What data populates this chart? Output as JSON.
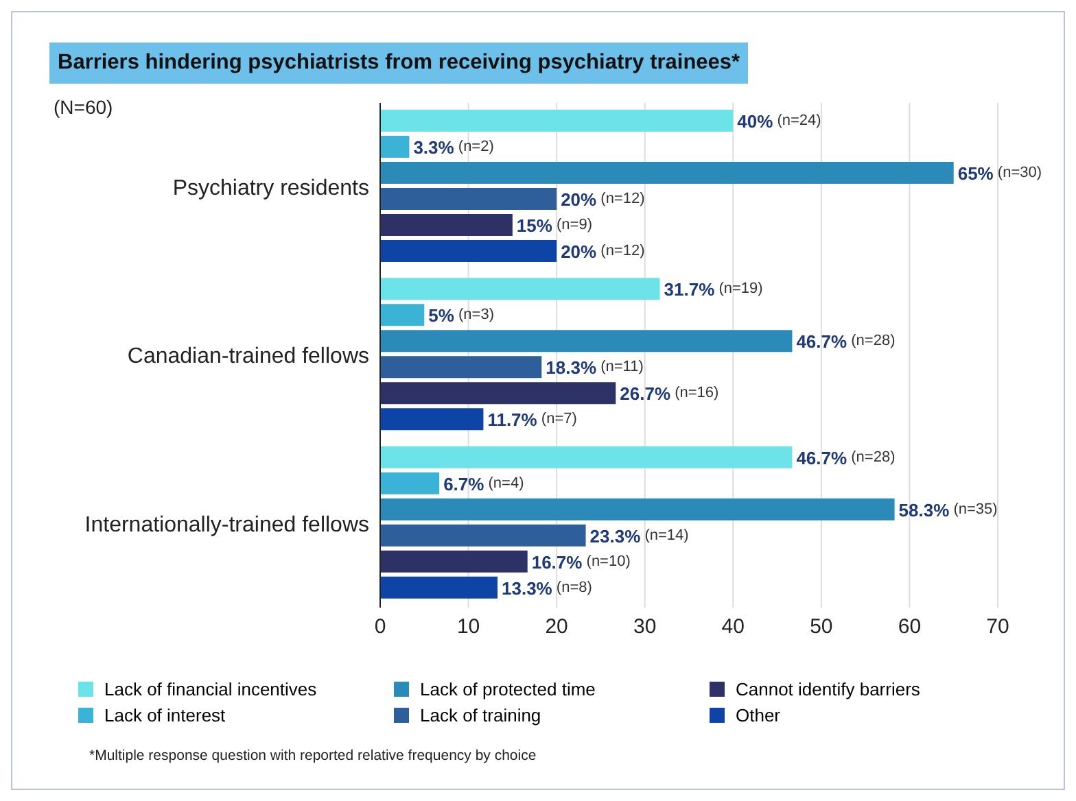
{
  "chart_data": {
    "type": "bar",
    "orientation": "horizontal",
    "title": "Barriers hindering psychiatrists from receiving psychiatry trainees*",
    "subtitle": "(N=60)",
    "categories": [
      "Psychiatry residents",
      "Canadian-trained fellows",
      "Internationally-trained fellows"
    ],
    "series": [
      {
        "name": "Lack of financial incentives",
        "color": "#6ce3e8",
        "values": [
          40,
          31.7,
          46.7
        ],
        "value_labels": [
          "40% (n=24)",
          "31.7% (n=19)",
          "46.7% (n=28)"
        ]
      },
      {
        "name": "Lack of interest",
        "color": "#3bb3d6",
        "values": [
          3.3,
          5,
          6.7
        ],
        "value_labels": [
          "3.3% (n=2)",
          "5% (n=3)",
          "6.7% (n=4)"
        ]
      },
      {
        "name": "Lack of protected time",
        "color": "#2b8ab8",
        "values": [
          65,
          46.7,
          58.3
        ],
        "value_labels": [
          "65% (n=30)",
          "46.7% (n=28)",
          "58.3% (n=35)"
        ]
      },
      {
        "name": "Lack of training",
        "color": "#2f5f9a",
        "values": [
          20,
          18.3,
          23.3
        ],
        "value_labels": [
          "20% (n=12)",
          "18.3% (n=11)",
          "23.3% (n=14)"
        ]
      },
      {
        "name": "Cannot identify barriers",
        "color": "#2e3166",
        "values": [
          15,
          26.7,
          16.7
        ],
        "value_labels": [
          "15% (n=9)",
          "26.7% (n=16)",
          "16.7% (n=10)"
        ]
      },
      {
        "name": "Other",
        "color": "#0d44a6",
        "values": [
          20,
          11.7,
          13.3
        ],
        "value_labels": [
          "20% (n=12)",
          "11.7% (n=7)",
          "13.3% (n=8)"
        ]
      }
    ],
    "xlim": [
      0,
      70
    ],
    "xticks": [
      0,
      10,
      20,
      30,
      40,
      50,
      60,
      70
    ],
    "grid": "x",
    "legend": "bottom",
    "annotations": [
      "*Multiple response question with reported relative frequency by choice"
    ]
  }
}
